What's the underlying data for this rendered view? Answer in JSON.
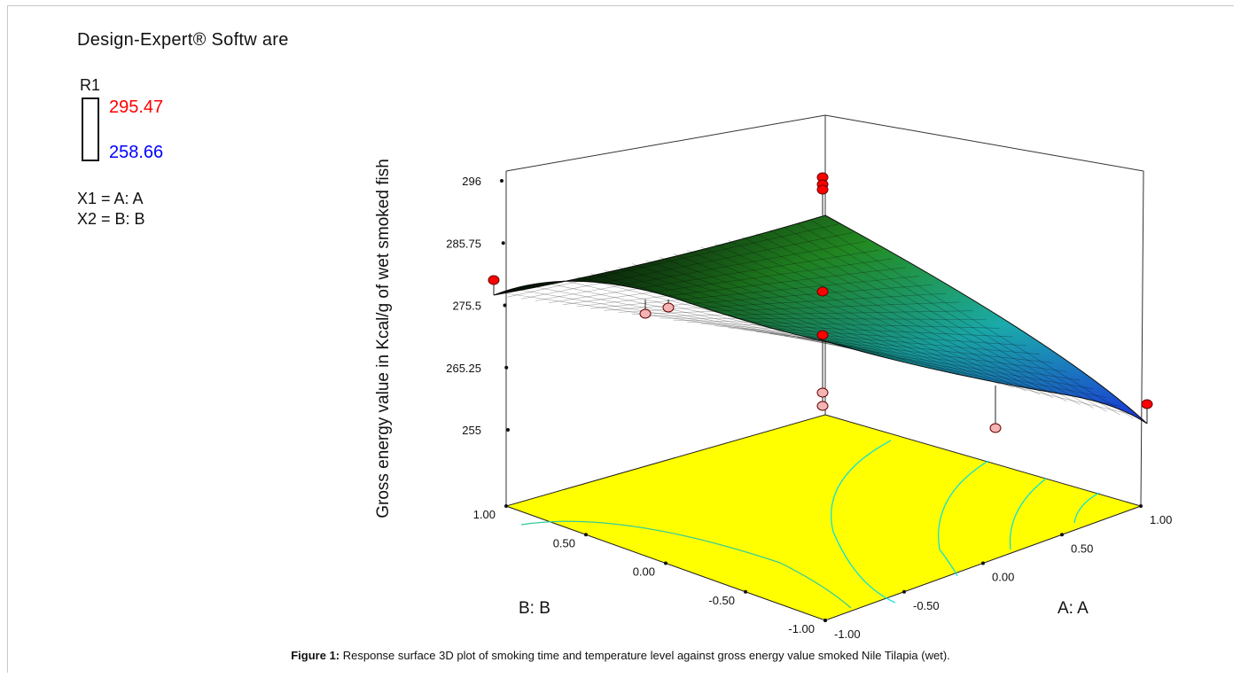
{
  "software": "Design-Expert® Softw are",
  "legend": {
    "response": "R1",
    "high": "295.47",
    "low": "258.66",
    "high_color": "#ff0000",
    "low_color": "#0000ff"
  },
  "factors": [
    "X1 = A: A",
    "X2 = B: B"
  ],
  "caption": {
    "label": "Figure 1:",
    "text": " Response surface 3D plot of smoking time and temperature level against gross energy value smoked Nile Tilapia (wet)."
  },
  "chart_data": {
    "type": "surface",
    "zlabel": "Gross energy value in Kcal/g of wet smoked fish",
    "xlabel": "A: A",
    "ylabel": "B: B",
    "z_ticks": [
      "255",
      "265.25",
      "275.5",
      "285.75",
      "296"
    ],
    "x_ticks": [
      "-1.00",
      "-0.50",
      "0.00",
      "0.50",
      "1.00"
    ],
    "y_ticks": [
      "-1.00",
      "-0.50",
      "0.00",
      "0.50",
      "1.00"
    ],
    "zlim": [
      255,
      296
    ],
    "xlim": [
      -1,
      1
    ],
    "ylim": [
      -1,
      1
    ],
    "surface_corners": [
      {
        "a": -1,
        "b": -1,
        "z": 262.5
      },
      {
        "a": 1,
        "b": -1,
        "z": 261.5
      },
      {
        "a": -1,
        "b": 1,
        "z": 279.0
      },
      {
        "a": 1,
        "b": 1,
        "z": 288.5
      }
    ],
    "design_points": [
      {
        "a": -1,
        "b": -1,
        "z": 261.0,
        "above": false
      },
      {
        "a": -1,
        "b": -1,
        "z": 259.5,
        "above": false
      },
      {
        "a": 1,
        "b": -1,
        "z": 262.8,
        "above": true
      },
      {
        "a": -1,
        "b": 1,
        "z": 282.0,
        "above": true
      },
      {
        "a": 0,
        "b": 0,
        "z": 270.0,
        "above": false
      },
      {
        "a": 0,
        "b": 0,
        "z": 271.5,
        "above": false
      },
      {
        "a": 1,
        "b": 1,
        "z": 294.0,
        "above": true
      },
      {
        "a": 1,
        "b": 1,
        "z": 295.5,
        "above": true
      },
      {
        "a": 1,
        "b": 1,
        "z": 296.0,
        "above": true
      },
      {
        "a": 1,
        "b": 1,
        "z": 279.5,
        "above": true
      },
      {
        "a": 1,
        "b": 1,
        "z": 272.5,
        "above": true
      }
    ],
    "floor_color": "#ffff00",
    "contour_color": "#00e0e0"
  }
}
